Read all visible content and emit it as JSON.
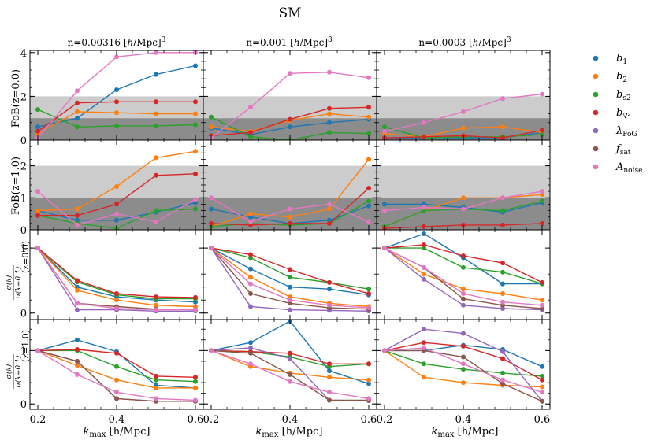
{
  "title": "SM",
  "columns": [
    {
      "prefix": "n̄=0.00316 [",
      "unit": "h",
      "suffix": "/Mpc]",
      "sup": "3"
    },
    {
      "prefix": "n̄=0.001 [",
      "unit": "h",
      "suffix": "/Mpc]",
      "sup": "3"
    },
    {
      "prefix": "n̄=0.0003 [",
      "unit": "h",
      "suffix": "/Mpc]",
      "sup": "3"
    }
  ],
  "row_labels": [
    "FoB(z=0.0)",
    "FoB(z=1.0)"
  ],
  "ratio_label": {
    "num": "σ(k)",
    "den": "σ(k=0.1)",
    "z0": "(z=0.0)",
    "z1": "(z=1.0)"
  },
  "xlabel": {
    "main": "k",
    "sub": "max",
    "unit": " [h/Mpc]"
  },
  "xticks": [
    "0.2",
    "0.4",
    "0.6"
  ],
  "yticks": [
    [
      "0",
      "2",
      "4"
    ],
    [
      "0",
      "1",
      "2"
    ],
    [
      "0",
      "1"
    ],
    [
      "0",
      "1"
    ]
  ],
  "legend": [
    {
      "name": "b",
      "sub": "1",
      "sup": "",
      "color": "#1f77b4"
    },
    {
      "name": "b",
      "sub": "2",
      "sup": "",
      "color": "#ff7f0e"
    },
    {
      "name": "b",
      "sub": "s2",
      "sup": "",
      "color": "#2ca02c"
    },
    {
      "name": "b",
      "sub": "∇²",
      "sup": "",
      "color": "#d62728"
    },
    {
      "name": "λ",
      "sub": "FoG",
      "sup": "",
      "color": "#9467bd"
    },
    {
      "name": "f",
      "sub": "sat",
      "sup": "",
      "color": "#8c564b"
    },
    {
      "name": "A",
      "sub": "noise",
      "sup": "",
      "color": "#e377c2"
    }
  ],
  "chart_data": {
    "type": "line",
    "x": [
      0.2,
      0.3,
      0.4,
      0.5,
      0.6
    ],
    "xlim": [
      0.18,
      0.62
    ],
    "bands": {
      "dark": [
        0,
        1
      ],
      "light": [
        1,
        2
      ]
    },
    "rows": [
      {
        "ylim": [
          0,
          4.1
        ],
        "bands": true,
        "panels": [
          {
            "b1": [
              0.6,
              1.0,
              2.3,
              3.0,
              3.4
            ],
            "b2": [
              0.3,
              1.3,
              1.25,
              1.2,
              1.2
            ],
            "bs2": [
              1.4,
              0.6,
              0.65,
              0.65,
              0.7
            ],
            "bnabla2": [
              0.4,
              1.7,
              1.75,
              1.75,
              1.75
            ],
            "Anoise": [
              0.1,
              2.25,
              3.8,
              4.0,
              4.0
            ]
          },
          {
            "b1": [
              0.55,
              0.25,
              0.6,
              0.8,
              0.95
            ],
            "b2": [
              0.6,
              0.4,
              0.9,
              1.2,
              1.05
            ],
            "bs2": [
              1.05,
              0.15,
              0.0,
              0.35,
              0.3
            ],
            "bnabla2": [
              0.2,
              0.35,
              0.95,
              1.45,
              1.5
            ],
            "Anoise": [
              0.1,
              1.5,
              3.05,
              3.1,
              2.85
            ]
          },
          {
            "b1": [
              0.1,
              0.1,
              0.1,
              0.1,
              0.35
            ],
            "b2": [
              0.3,
              0.15,
              0.55,
              0.6,
              0.35
            ],
            "bs2": [
              0.6,
              0.1,
              0.15,
              0.15,
              0.25
            ],
            "bnabla2": [
              0.1,
              0.15,
              0.2,
              0.1,
              0.45
            ],
            "Anoise": [
              0.4,
              0.8,
              1.3,
              1.9,
              2.1
            ]
          }
        ]
      },
      {
        "ylim": [
          0,
          2.8
        ],
        "bands": true,
        "panels": [
          {
            "b1": [
              0.6,
              0.3,
              0.3,
              0.55,
              0.85
            ],
            "b2": [
              0.6,
              0.65,
              1.35,
              2.25,
              2.45
            ],
            "bs2": [
              0.45,
              0.2,
              0.05,
              0.6,
              0.65
            ],
            "bnabla2": [
              0.45,
              0.45,
              0.8,
              1.7,
              1.75
            ],
            "Anoise": [
              1.2,
              0.15,
              0.5,
              0.25,
              0.95
            ]
          },
          {
            "b1": [
              0.65,
              0.4,
              0.2,
              0.3,
              0.75
            ],
            "b2": [
              0.1,
              0.5,
              0.4,
              0.65,
              2.2
            ],
            "bs2": [
              0.1,
              0.2,
              0.15,
              0.2,
              0.9
            ],
            "bnabla2": [
              0.2,
              0.15,
              0.2,
              0.2,
              1.3
            ],
            "Anoise": [
              1.0,
              0.25,
              0.65,
              0.8,
              0.25
            ]
          },
          {
            "b1": [
              0.8,
              0.8,
              0.7,
              0.55,
              0.85
            ],
            "b2": [
              0.1,
              0.6,
              1.0,
              1.0,
              1.1
            ],
            "bs2": [
              0.1,
              0.6,
              0.65,
              0.6,
              0.9
            ],
            "bnabla2": [
              0.05,
              0.1,
              0.15,
              0.15,
              0.2
            ],
            "Anoise": [
              0.6,
              0.7,
              0.65,
              1.0,
              1.2
            ]
          }
        ]
      },
      {
        "ylim": [
          -0.1,
          1.28
        ],
        "bands": false,
        "panels": [
          {
            "b1": [
              1.0,
              0.4,
              0.25,
              0.2,
              0.17
            ],
            "b2": [
              1.0,
              0.35,
              0.2,
              0.12,
              0.1
            ],
            "bs2": [
              1.0,
              0.48,
              0.28,
              0.22,
              0.22
            ],
            "bnabla2": [
              1.0,
              0.5,
              0.3,
              0.25,
              0.24
            ],
            "lambdaFoG": [
              1.0,
              0.05,
              0.05,
              0.03,
              0.03
            ],
            "fsat": [
              1.0,
              0.15,
              0.1,
              0.06,
              0.05
            ],
            "Anoise": [
              1.0,
              0.15,
              0.07,
              0.05,
              0.05
            ]
          },
          {
            "b1": [
              1.0,
              0.68,
              0.4,
              0.37,
              0.28
            ],
            "b2": [
              1.0,
              0.55,
              0.25,
              0.15,
              0.1
            ],
            "bs2": [
              1.0,
              0.85,
              0.55,
              0.47,
              0.37
            ],
            "bnabla2": [
              1.0,
              0.9,
              0.67,
              0.47,
              0.3
            ],
            "lambdaFoG": [
              1.0,
              0.1,
              0.05,
              0.04,
              0.03
            ],
            "fsat": [
              1.0,
              0.3,
              0.15,
              0.08,
              0.06
            ],
            "Anoise": [
              1.0,
              0.45,
              0.2,
              0.12,
              0.08
            ]
          },
          {
            "b1": [
              1.0,
              1.22,
              0.85,
              0.45,
              0.45
            ],
            "b2": [
              1.0,
              0.6,
              0.37,
              0.3,
              0.2
            ],
            "bs2": [
              1.0,
              1.0,
              0.7,
              0.63,
              0.45
            ],
            "bnabla2": [
              1.0,
              1.05,
              0.88,
              0.77,
              0.47
            ],
            "lambdaFoG": [
              1.0,
              0.52,
              0.12,
              0.07,
              0.05
            ],
            "fsat": [
              1.0,
              0.7,
              0.22,
              0.12,
              0.07
            ],
            "Anoise": [
              1.0,
              0.7,
              0.3,
              0.17,
              0.12
            ]
          }
        ]
      },
      {
        "ylim": [
          -0.1,
          1.58
        ],
        "bands": false,
        "panels": [
          {
            "b1": [
              1.0,
              1.2,
              0.98,
              0.35,
              0.3
            ],
            "b2": [
              1.0,
              0.72,
              0.45,
              0.3,
              0.3
            ],
            "bs2": [
              1.0,
              1.0,
              0.7,
              0.45,
              0.42
            ],
            "bnabla2": [
              1.0,
              1.02,
              0.95,
              0.52,
              0.5
            ],
            "lambdaFoG": [
              1.0,
              0.8,
              0.1,
              0.05,
              0.05
            ],
            "fsat": [
              1.0,
              0.8,
              0.1,
              0.05,
              0.05
            ],
            "Anoise": [
              1.0,
              0.55,
              0.22,
              0.1,
              0.07
            ]
          },
          {
            "b1": [
              1.0,
              1.15,
              1.55,
              0.62,
              0.38
            ],
            "b2": [
              1.0,
              0.7,
              0.58,
              0.5,
              0.45
            ],
            "bs2": [
              1.0,
              0.98,
              0.88,
              0.7,
              0.75
            ],
            "bnabla2": [
              1.0,
              0.98,
              0.95,
              0.75,
              0.75
            ],
            "lambdaFoG": [
              1.0,
              1.05,
              0.85,
              0.07,
              0.06
            ],
            "fsat": [
              1.0,
              0.95,
              0.55,
              0.07,
              0.07
            ],
            "Anoise": [
              1.0,
              0.75,
              0.42,
              0.22,
              0.1
            ]
          },
          {
            "b1": [
              1.0,
              1.0,
              1.1,
              1.02,
              0.7
            ],
            "b2": [
              1.0,
              0.5,
              0.4,
              0.35,
              0.32
            ],
            "bs2": [
              1.0,
              0.75,
              0.65,
              0.58,
              0.52
            ],
            "bnabla2": [
              1.0,
              1.15,
              1.08,
              0.85,
              0.45
            ],
            "lambdaFoG": [
              1.0,
              1.4,
              1.32,
              0.98,
              0.05
            ],
            "fsat": [
              1.0,
              1.0,
              0.88,
              0.38,
              0.05
            ],
            "Anoise": [
              1.0,
              1.05,
              0.75,
              0.45,
              0.22
            ]
          }
        ]
      }
    ]
  }
}
